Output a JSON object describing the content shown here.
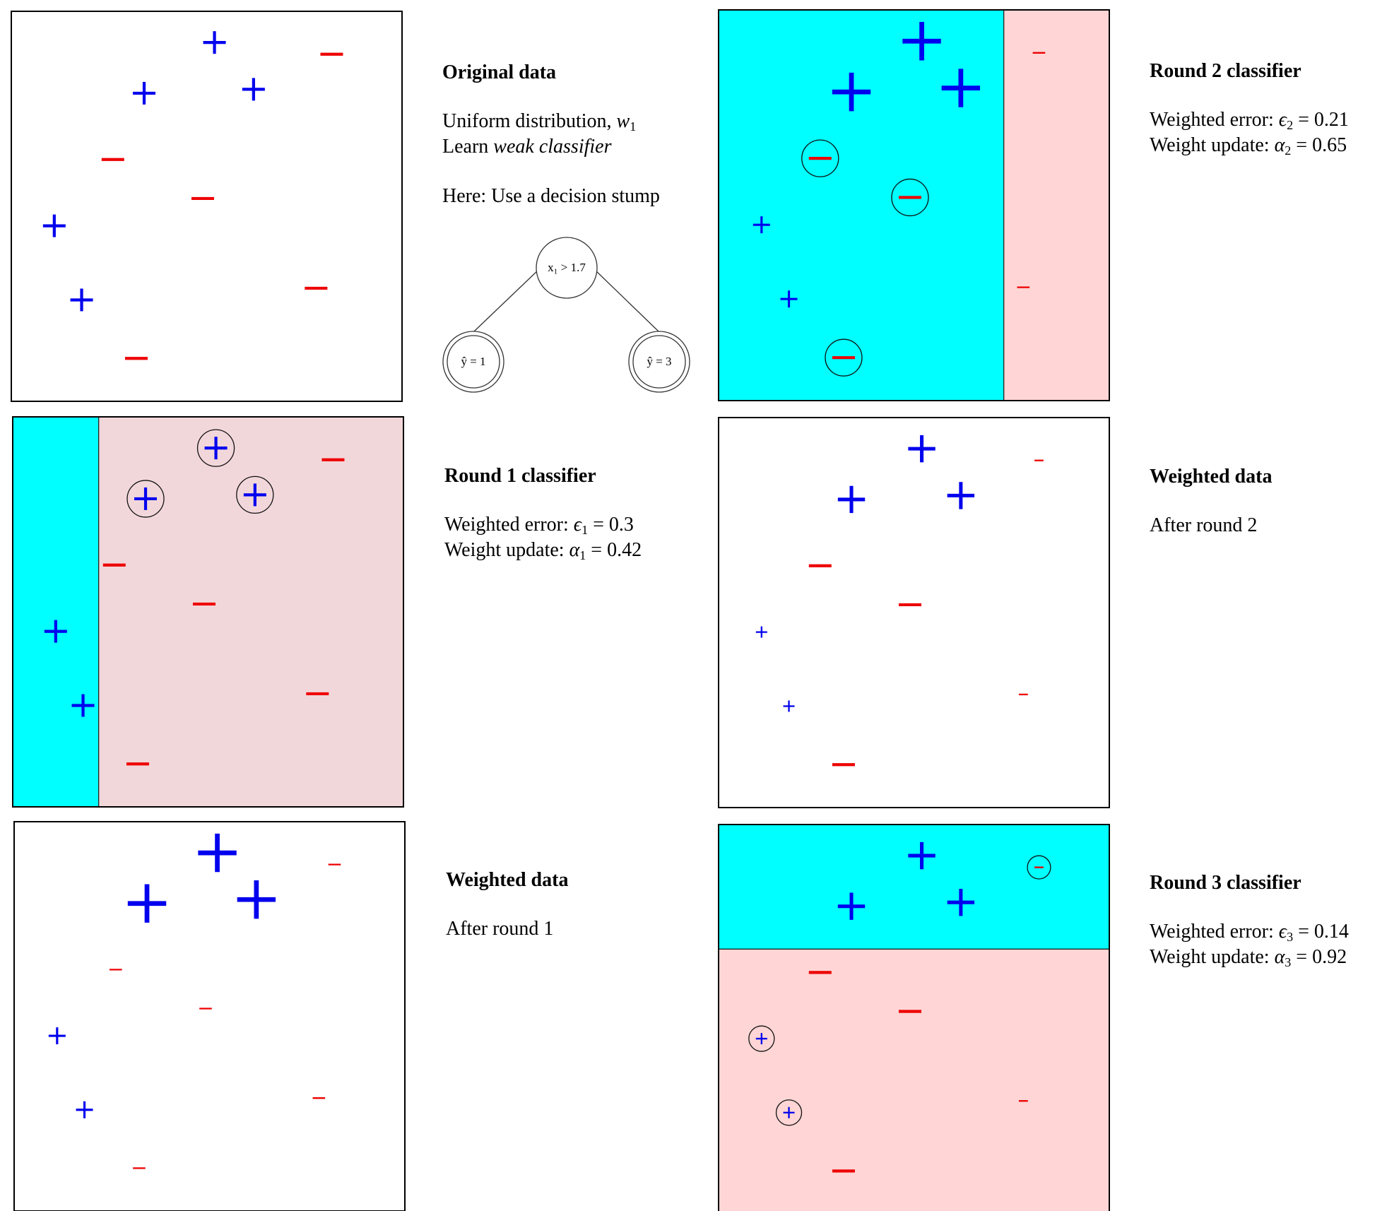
{
  "colors": {
    "positive": "#0000ee",
    "negative": "#ee0000",
    "region_positive": "#00ffff",
    "region_negative_a": "#f2d7da",
    "region_negative_b": "#ffd5d5"
  },
  "points": [
    {
      "label": "+",
      "x": 0.52,
      "y": 0.92
    },
    {
      "label": "+",
      "x": 0.34,
      "y": 0.79
    },
    {
      "label": "+",
      "x": 0.62,
      "y": 0.8
    },
    {
      "label": "-",
      "x": 0.82,
      "y": 0.89
    },
    {
      "label": "-",
      "x": 0.26,
      "y": 0.62
    },
    {
      "label": "-",
      "x": 0.49,
      "y": 0.52
    },
    {
      "label": "+",
      "x": 0.11,
      "y": 0.45
    },
    {
      "label": "+",
      "x": 0.18,
      "y": 0.26
    },
    {
      "label": "-",
      "x": 0.78,
      "y": 0.29
    },
    {
      "label": "-",
      "x": 0.32,
      "y": 0.11
    }
  ],
  "panels": [
    {
      "id": "original",
      "weights": [
        1,
        1,
        1,
        1,
        1,
        1,
        1,
        1,
        1,
        1
      ],
      "circled": [],
      "split": null
    },
    {
      "id": "round1",
      "weights": [
        1,
        1,
        1,
        1,
        1,
        1,
        1,
        1,
        1,
        1
      ],
      "circled": [
        0,
        1,
        2
      ],
      "split": {
        "axis": "x",
        "at": 0.22,
        "low": "positive",
        "high": "negative_a"
      }
    },
    {
      "id": "weighted1",
      "weights": [
        1.7,
        1.7,
        1.7,
        0.55,
        0.55,
        0.55,
        0.75,
        0.75,
        0.55,
        0.55
      ],
      "circled": [],
      "split": null
    },
    {
      "id": "round2",
      "weights": [
        1.7,
        1.7,
        1.7,
        0.55,
        1,
        1,
        0.75,
        0.75,
        0.55,
        1
      ],
      "circled": [
        4,
        5,
        9
      ],
      "split": {
        "axis": "x",
        "at": 0.73,
        "low": "positive",
        "high": "negative_b"
      }
    },
    {
      "id": "weighted2",
      "weights": [
        1.2,
        1.2,
        1.2,
        0.4,
        1,
        1,
        0.5,
        0.5,
        0.4,
        1
      ],
      "circled": [],
      "split": null
    },
    {
      "id": "round3",
      "weights": [
        1.2,
        1.2,
        1.2,
        0.4,
        1,
        1,
        0.5,
        0.5,
        0.4,
        1
      ],
      "circled": [
        6,
        7,
        3
      ],
      "split": {
        "axis": "y",
        "at": 0.68,
        "low": "negative_b",
        "high": "positive"
      }
    }
  ],
  "captions": {
    "original": {
      "title": "Original data",
      "line1_text": "Uniform distribution, ",
      "line1_var": "w",
      "line1_sub": "1",
      "line2_text": "Learn ",
      "line2_em": "weak classifier",
      "line3": "Here: Use a decision stump"
    },
    "round1": {
      "title": "Round 1 classifier",
      "err_label": "Weighted error: ",
      "err_sym": "ϵ",
      "err_sub": "1",
      "err_val": " = 0.3",
      "upd_label": "Weight update: ",
      "upd_sym": "α",
      "upd_sub": "1",
      "upd_val": " = 0.42"
    },
    "weighted1": {
      "title": "Weighted data",
      "line1": "After round 1"
    },
    "round2": {
      "title": "Round 2 classifier",
      "err_label": "Weighted error: ",
      "err_sym": "ϵ",
      "err_sub": "2",
      "err_val": " = 0.21",
      "upd_label": "Weight update: ",
      "upd_sym": "α",
      "upd_sub": "2",
      "upd_val": " = 0.65"
    },
    "weighted2": {
      "title": "Weighted data",
      "line1": "After round 2"
    },
    "round3": {
      "title": "Round 3 classifier",
      "err_label": "Weighted error: ",
      "err_sym": "ϵ",
      "err_sub": "3",
      "err_val": " = 0.14",
      "upd_label": "Weight update: ",
      "upd_sym": "α",
      "upd_sub": "3",
      "upd_val": " = 0.92"
    }
  },
  "stump": {
    "root": "x₁ > 1.7",
    "left_leaf": "ŷ = 1",
    "right_leaf": "ŷ = 3"
  }
}
